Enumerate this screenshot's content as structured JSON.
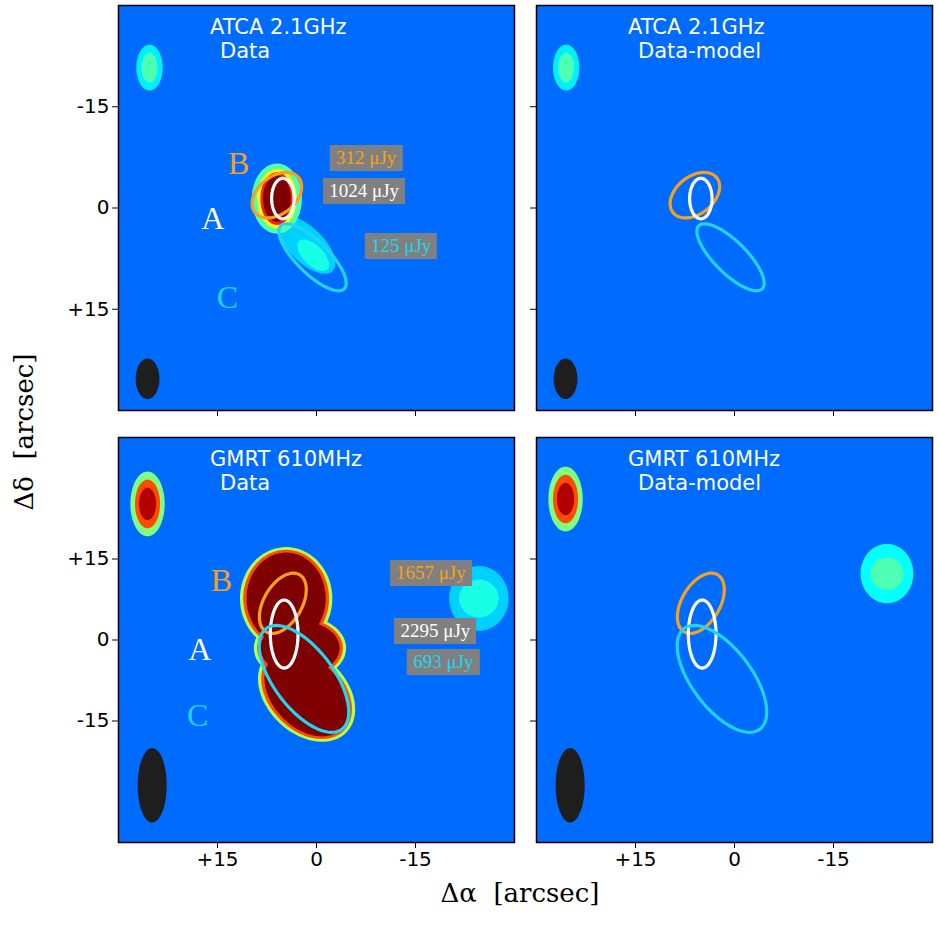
{
  "chart_data": {
    "type": "image_panels",
    "x_label": "Δα  [arcsec]",
    "y_label": "Δδ  [arcsec]",
    "level_range": [
      0,
      1
    ],
    "panels": [
      {
        "type": "image",
        "title": "ATCA 2.1GHz",
        "subtitle": "Data",
        "xlim": [
          30,
          -30
        ],
        "ylim": [
          30,
          -30
        ],
        "xticks": [
          {
            "value": 15,
            "label": "+15"
          },
          0,
          -15
        ],
        "yticks": [
          -15,
          0,
          {
            "value": 15,
            "label": "+15"
          }
        ],
        "tick_labels": "y",
        "background_level": 0.23,
        "blobs": [
          {
            "x": 25.3,
            "y": -20.8,
            "a": 3.4,
            "b": 2.0,
            "pa": 0,
            "level": 0.36
          },
          {
            "x": 25.3,
            "y": -20.8,
            "a": 2.2,
            "b": 1.2,
            "pa": 0,
            "level": 0.45
          },
          {
            "x": 1.5,
            "y": 5.5,
            "a": 5.5,
            "b": 2.6,
            "pa": -46,
            "level": 0.33
          },
          {
            "x": 0.5,
            "y": 7,
            "a": 3,
            "b": 1.5,
            "pa": -46,
            "level": 0.4
          },
          {
            "x": 6,
            "y": -1.4,
            "a": 5.2,
            "b": 3.8,
            "pa": 0,
            "level": 0.45
          },
          {
            "x": 6,
            "y": -1.4,
            "a": 4.4,
            "b": 3.0,
            "pa": 0,
            "level": 0.62
          },
          {
            "x": 6,
            "y": -1.4,
            "a": 3.9,
            "b": 2.5,
            "pa": 0,
            "level": 0.85
          },
          {
            "x": 6,
            "y": -1.4,
            "a": 3.4,
            "b": 2.1,
            "pa": 0,
            "level": 1
          }
        ],
        "beam": {
          "x": 25.6,
          "y": 25.3,
          "a": 3.0,
          "b": 1.8,
          "pa": 0
        },
        "apertures": [
          {
            "name": "B",
            "color": "#f7a01c",
            "x": 6,
            "y": -1.9,
            "a": 4.2,
            "b": 2.8,
            "pa": 53,
            "label_at": [
              11.8,
              -6.6
            ],
            "flux": 312,
            "flux_label": "312 μJy",
            "flux_at": [
              -7.6,
              -7.3
            ]
          },
          {
            "name": "A",
            "color": "#ffffff",
            "x": 5.1,
            "y": -1.4,
            "a": 3.0,
            "b": 1.7,
            "pa": 0,
            "label_at": [
              15.7,
              1.6
            ],
            "flux": 1024,
            "flux_label": "1024 μJy",
            "flux_at": [
              -7.3,
              -2.4
            ]
          },
          {
            "name": "C",
            "color": "#1fd5f2",
            "x": 0.6,
            "y": 7.3,
            "a": 6.7,
            "b": 2.4,
            "pa": -46,
            "label_at": [
              13.5,
              13.3
            ],
            "flux": 125,
            "flux_label": "125 μJy",
            "flux_at": [
              -12.9,
              5.7
            ]
          }
        ]
      },
      {
        "type": "image",
        "title": "ATCA 2.1GHz",
        "subtitle": "Data-model",
        "xlim": [
          30,
          -30
        ],
        "ylim": [
          30,
          -30
        ],
        "xticks": [
          {
            "value": 15,
            "label": "+15"
          },
          0,
          -15
        ],
        "yticks": [
          -15,
          0,
          {
            "value": 15,
            "label": "+15"
          }
        ],
        "tick_labels": false,
        "background_level": 0.23,
        "blobs": [
          {
            "x": 25.5,
            "y": -20.8,
            "a": 3.4,
            "b": 2.0,
            "pa": 0,
            "level": 0.36
          },
          {
            "x": 25.5,
            "y": -20.8,
            "a": 2.2,
            "b": 1.2,
            "pa": 0,
            "level": 0.45
          }
        ],
        "beam": {
          "x": 25.6,
          "y": 25.3,
          "a": 3.0,
          "b": 1.8,
          "pa": 0
        },
        "apertures": [
          {
            "color": "#f7a01c",
            "x": 6,
            "y": -1.9,
            "a": 4.2,
            "b": 2.8,
            "pa": 53
          },
          {
            "color": "#ffffff",
            "x": 5.1,
            "y": -1.4,
            "a": 3.0,
            "b": 1.7,
            "pa": 0
          },
          {
            "color": "#1fd5f2",
            "x": 0.6,
            "y": 7.3,
            "a": 6.7,
            "b": 2.4,
            "pa": -46
          }
        ]
      },
      {
        "type": "image",
        "title": "GMRT 610MHz",
        "subtitle": "Data",
        "xlim": [
          30,
          -30
        ],
        "ylim": [
          -37.5,
          37.5
        ],
        "xticks": [
          {
            "value": 15,
            "label": "+15"
          },
          0,
          -15
        ],
        "yticks": [
          -15,
          0,
          {
            "value": 15,
            "label": "+15"
          }
        ],
        "tick_labels": true,
        "background_level": 0.23,
        "blobs": [
          {
            "x": 25.6,
            "y": 25.2,
            "a": 6,
            "b": 2.6,
            "pa": 0,
            "level": 0.5
          },
          {
            "x": 25.6,
            "y": 25.2,
            "a": 4.5,
            "b": 1.9,
            "pa": 0,
            "level": 0.8
          },
          {
            "x": 25.6,
            "y": 25.2,
            "a": 3,
            "b": 1.3,
            "pa": 0,
            "level": 0.95
          },
          {
            "x": -24.6,
            "y": 7.7,
            "a": 6,
            "b": 4.5,
            "pa": 0,
            "level": 0.33
          },
          {
            "x": -24.6,
            "y": 7.7,
            "a": 3.5,
            "b": 3,
            "pa": 0,
            "level": 0.4
          },
          {
            "x": 4.6,
            "y": 7.7,
            "a": 9.5,
            "b": 7,
            "pa": 0,
            "level": 0.55
          },
          {
            "x": 2.5,
            "y": -1.5,
            "a": 6,
            "b": 7,
            "pa": 0,
            "level": 0.55
          },
          {
            "x": 1.5,
            "y": -10,
            "a": 9.5,
            "b": 6.5,
            "pa": 30,
            "level": 0.55
          },
          {
            "x": 4.6,
            "y": 7.7,
            "a": 9,
            "b": 6.5,
            "pa": 0,
            "level": 0.8
          },
          {
            "x": 2.5,
            "y": -1.5,
            "a": 5.5,
            "b": 6.5,
            "pa": 0,
            "level": 0.8
          },
          {
            "x": 1.5,
            "y": -10,
            "a": 9,
            "b": 6,
            "pa": 30,
            "level": 0.8
          },
          {
            "x": 4.6,
            "y": 7.7,
            "a": 8.5,
            "b": 6,
            "pa": 0,
            "level": 1
          },
          {
            "x": 2.5,
            "y": -1.5,
            "a": 5,
            "b": 6,
            "pa": 0,
            "level": 1
          },
          {
            "x": 1.5,
            "y": -10,
            "a": 8.5,
            "b": 5.5,
            "pa": 30,
            "level": 1
          }
        ],
        "beam": {
          "x": 24.9,
          "y": -26.9,
          "a": 6.9,
          "b": 2.2,
          "pa": 0
        },
        "apertures": [
          {
            "name": "B",
            "color": "#f7a01c",
            "x": 5.1,
            "y": 6.8,
            "a": 5.9,
            "b": 3.0,
            "pa": -22,
            "label_at": [
              14.4,
              11
            ],
            "flux": 1657,
            "flux_label": "1657 μJy",
            "flux_at": [
              -17.4,
              12.3
            ]
          },
          {
            "name": "A",
            "color": "#ffffff",
            "x": 4.9,
            "y": 1.1,
            "a": 6.3,
            "b": 2.1,
            "pa": 0,
            "label_at": [
              17.7,
              -1.8
            ],
            "flux": 2295,
            "flux_label": "2295 μJy",
            "flux_at": [
              -18.1,
              1.5
            ]
          },
          {
            "name": "C",
            "color": "#1fd5f2",
            "x": 1.9,
            "y": -7.2,
            "a": 11,
            "b": 4.8,
            "pa": 29,
            "label_at": [
              18,
              -14
            ],
            "flux": 693,
            "flux_label": "693 μJy",
            "flux_at": [
              -19.3,
              -4.2
            ]
          }
        ]
      },
      {
        "type": "image",
        "title": "GMRT 610MHz",
        "subtitle": "Data-model",
        "xlim": [
          30,
          -30
        ],
        "ylim": [
          -37.5,
          37.5
        ],
        "xticks": [
          {
            "value": 15,
            "label": "+15"
          },
          0,
          -15
        ],
        "yticks": [
          -15,
          0,
          {
            "value": 15,
            "label": "+15"
          }
        ],
        "tick_labels": "x",
        "background_level": 0.23,
        "blobs": [
          {
            "x": 25.6,
            "y": 26.1,
            "a": 6,
            "b": 2.6,
            "pa": 0,
            "level": 0.5
          },
          {
            "x": 25.6,
            "y": 26.1,
            "a": 4.5,
            "b": 1.9,
            "pa": 0,
            "level": 0.8
          },
          {
            "x": 25.6,
            "y": 26.1,
            "a": 3,
            "b": 1.3,
            "pa": 0,
            "level": 0.95
          },
          {
            "x": -23.1,
            "y": 12.3,
            "a": 5.5,
            "b": 4,
            "pa": 0,
            "level": 0.38
          },
          {
            "x": -23.1,
            "y": 12.3,
            "a": 3,
            "b": 2.5,
            "pa": 0,
            "level": 0.45
          }
        ],
        "beam": {
          "x": 24.9,
          "y": -26.9,
          "a": 6.9,
          "b": 2.2,
          "pa": 0
        },
        "apertures": [
          {
            "color": "#f7a01c",
            "x": 5.1,
            "y": 6.8,
            "a": 5.9,
            "b": 3.0,
            "pa": -22
          },
          {
            "color": "#ffffff",
            "x": 4.9,
            "y": 1.1,
            "a": 6.3,
            "b": 2.1,
            "pa": 0
          },
          {
            "color": "#1fd5f2",
            "x": 1.9,
            "y": -7.2,
            "a": 11,
            "b": 4.8,
            "pa": 29
          }
        ]
      }
    ]
  }
}
